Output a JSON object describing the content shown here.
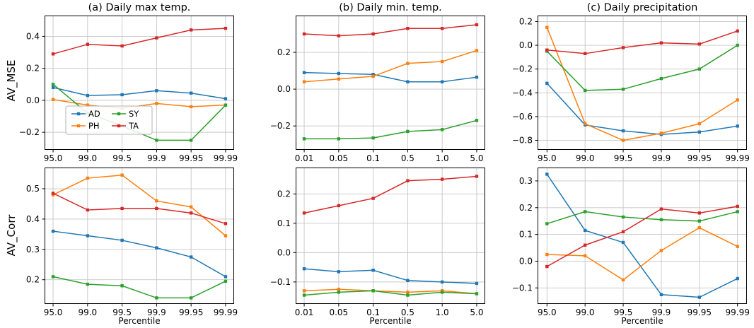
{
  "figure": {
    "row_labels": [
      "AV_MSE",
      "AV_Corr"
    ],
    "xlabel": "Percentile",
    "grid_color": "#c6c6c6",
    "legend": {
      "position": "lower-left-inside-subplot-a",
      "entries": [
        {
          "label": "AD",
          "color": "#1f77b4"
        },
        {
          "label": "PH",
          "color": "#ff7f0e"
        },
        {
          "label": "SY",
          "color": "#2ca02c"
        },
        {
          "label": "TA",
          "color": "#d62728"
        }
      ]
    }
  },
  "chart_data": [
    {
      "type": "line",
      "title": "(a) Daily max temp.",
      "ylabel": "AV_MSE",
      "grid": true,
      "legend": true,
      "categories": [
        "95.0",
        "99.0",
        "99.5",
        "99.9",
        "99.95",
        "99.99"
      ],
      "yticks": [
        -0.2,
        0.0,
        0.2,
        0.4
      ],
      "ytick_labels": [
        "−0.2",
        "0.0",
        "0.2",
        "0.4"
      ],
      "ylim": [
        -0.31,
        0.53
      ],
      "series": [
        {
          "name": "AD",
          "color": "#1f77b4",
          "values": [
            0.08,
            0.03,
            0.035,
            0.06,
            0.045,
            0.01
          ]
        },
        {
          "name": "PH",
          "color": "#ff7f0e",
          "values": [
            0.005,
            -0.03,
            -0.05,
            -0.02,
            -0.04,
            -0.03
          ]
        },
        {
          "name": "SY",
          "color": "#2ca02c",
          "values": [
            0.1,
            -0.08,
            -0.16,
            -0.25,
            -0.25,
            -0.03
          ]
        },
        {
          "name": "TA",
          "color": "#d62728",
          "values": [
            0.29,
            0.35,
            0.34,
            0.39,
            0.44,
            0.45
          ]
        }
      ]
    },
    {
      "type": "line",
      "title": "(b) Daily min. temp.",
      "ylabel": "AV_MSE",
      "grid": true,
      "legend": false,
      "categories": [
        "0.01",
        "0.05",
        "0.1",
        "0.5",
        "1.0",
        "5.0"
      ],
      "yticks": [
        -0.2,
        0.0,
        0.2
      ],
      "ytick_labels": [
        "−0.2",
        "0.0",
        "0.2"
      ],
      "ylim": [
        -0.33,
        0.4
      ],
      "series": [
        {
          "name": "AD",
          "color": "#1f77b4",
          "values": [
            0.09,
            0.085,
            0.08,
            0.04,
            0.04,
            0.065
          ]
        },
        {
          "name": "PH",
          "color": "#ff7f0e",
          "values": [
            0.04,
            0.055,
            0.07,
            0.14,
            0.15,
            0.21
          ]
        },
        {
          "name": "SY",
          "color": "#2ca02c",
          "values": [
            -0.27,
            -0.27,
            -0.265,
            -0.23,
            -0.22,
            -0.17
          ]
        },
        {
          "name": "TA",
          "color": "#d62728",
          "values": [
            0.3,
            0.29,
            0.3,
            0.33,
            0.33,
            0.35
          ]
        }
      ]
    },
    {
      "type": "line",
      "title": "(c) Daily precipitation",
      "ylabel": "AV_MSE",
      "grid": true,
      "legend": false,
      "categories": [
        "95.0",
        "99.0",
        "99.5",
        "99.9",
        "99.95",
        "99.99"
      ],
      "yticks": [
        -0.8,
        -0.6,
        -0.4,
        -0.2,
        0.0,
        0.2
      ],
      "ytick_labels": [
        "−0.8",
        "−0.6",
        "−0.4",
        "−0.2",
        "0.0",
        "0.2"
      ],
      "ylim": [
        -0.88,
        0.25
      ],
      "series": [
        {
          "name": "AD",
          "color": "#1f77b4",
          "values": [
            -0.32,
            -0.67,
            -0.72,
            -0.75,
            -0.73,
            -0.68
          ]
        },
        {
          "name": "PH",
          "color": "#ff7f0e",
          "values": [
            0.15,
            -0.66,
            -0.8,
            -0.74,
            -0.66,
            -0.46
          ]
        },
        {
          "name": "SY",
          "color": "#2ca02c",
          "values": [
            -0.05,
            -0.38,
            -0.37,
            -0.28,
            -0.2,
            0.0
          ]
        },
        {
          "name": "TA",
          "color": "#d62728",
          "values": [
            -0.04,
            -0.07,
            -0.02,
            0.02,
            0.01,
            0.12
          ]
        }
      ]
    },
    {
      "type": "line",
      "title": "",
      "ylabel": "AV_Corr",
      "xlabel": "Percentile",
      "grid": true,
      "legend": false,
      "categories": [
        "95.0",
        "99.0",
        "99.5",
        "99.9",
        "99.95",
        "99.99"
      ],
      "yticks": [
        0.2,
        0.3,
        0.4,
        0.5
      ],
      "ytick_labels": [
        "0.2",
        "0.3",
        "0.4",
        "0.5"
      ],
      "ylim": [
        0.12,
        0.57
      ],
      "series": [
        {
          "name": "AD",
          "color": "#1f77b4",
          "values": [
            0.36,
            0.345,
            0.33,
            0.305,
            0.275,
            0.21
          ]
        },
        {
          "name": "PH",
          "color": "#ff7f0e",
          "values": [
            0.48,
            0.535,
            0.545,
            0.46,
            0.44,
            0.345
          ]
        },
        {
          "name": "SY",
          "color": "#2ca02c",
          "values": [
            0.21,
            0.185,
            0.18,
            0.14,
            0.14,
            0.195
          ]
        },
        {
          "name": "TA",
          "color": "#d62728",
          "values": [
            0.485,
            0.43,
            0.435,
            0.435,
            0.42,
            0.385
          ]
        }
      ]
    },
    {
      "type": "line",
      "title": "",
      "ylabel": "AV_Corr",
      "xlabel": "Percentile",
      "grid": true,
      "legend": false,
      "categories": [
        "0.01",
        "0.05",
        "0.1",
        "0.5",
        "1.0",
        "5.0"
      ],
      "yticks": [
        -0.1,
        0.0,
        0.1,
        0.2
      ],
      "ytick_labels": [
        "−0.1",
        "0.0",
        "0.1",
        "0.2"
      ],
      "ylim": [
        -0.175,
        0.29
      ],
      "series": [
        {
          "name": "AD",
          "color": "#1f77b4",
          "values": [
            -0.055,
            -0.065,
            -0.06,
            -0.095,
            -0.1,
            -0.105
          ]
        },
        {
          "name": "PH",
          "color": "#ff7f0e",
          "values": [
            -0.13,
            -0.125,
            -0.13,
            -0.135,
            -0.13,
            -0.14
          ]
        },
        {
          "name": "SY",
          "color": "#2ca02c",
          "values": [
            -0.145,
            -0.135,
            -0.13,
            -0.145,
            -0.135,
            -0.14
          ]
        },
        {
          "name": "TA",
          "color": "#d62728",
          "values": [
            0.135,
            0.16,
            0.185,
            0.245,
            0.25,
            0.26
          ]
        }
      ]
    },
    {
      "type": "line",
      "title": "",
      "ylabel": "AV_Corr",
      "xlabel": "Percentile",
      "grid": true,
      "legend": false,
      "categories": [
        "95.0",
        "99.0",
        "99.5",
        "99.9",
        "99.95",
        "99.99"
      ],
      "yticks": [
        -0.1,
        0.0,
        0.1,
        0.2,
        0.3
      ],
      "ytick_labels": [
        "−0.1",
        "0.0",
        "0.1",
        "0.2",
        "0.3"
      ],
      "ylim": [
        -0.16,
        0.35
      ],
      "series": [
        {
          "name": "AD",
          "color": "#1f77b4",
          "values": [
            0.325,
            0.115,
            0.07,
            -0.125,
            -0.135,
            -0.065
          ]
        },
        {
          "name": "PH",
          "color": "#ff7f0e",
          "values": [
            0.025,
            0.02,
            -0.07,
            0.04,
            0.125,
            0.055
          ]
        },
        {
          "name": "SY",
          "color": "#2ca02c",
          "values": [
            0.14,
            0.185,
            0.165,
            0.155,
            0.15,
            0.185
          ]
        },
        {
          "name": "TA",
          "color": "#d62728",
          "values": [
            -0.02,
            0.06,
            0.11,
            0.195,
            0.18,
            0.205
          ]
        }
      ]
    }
  ]
}
